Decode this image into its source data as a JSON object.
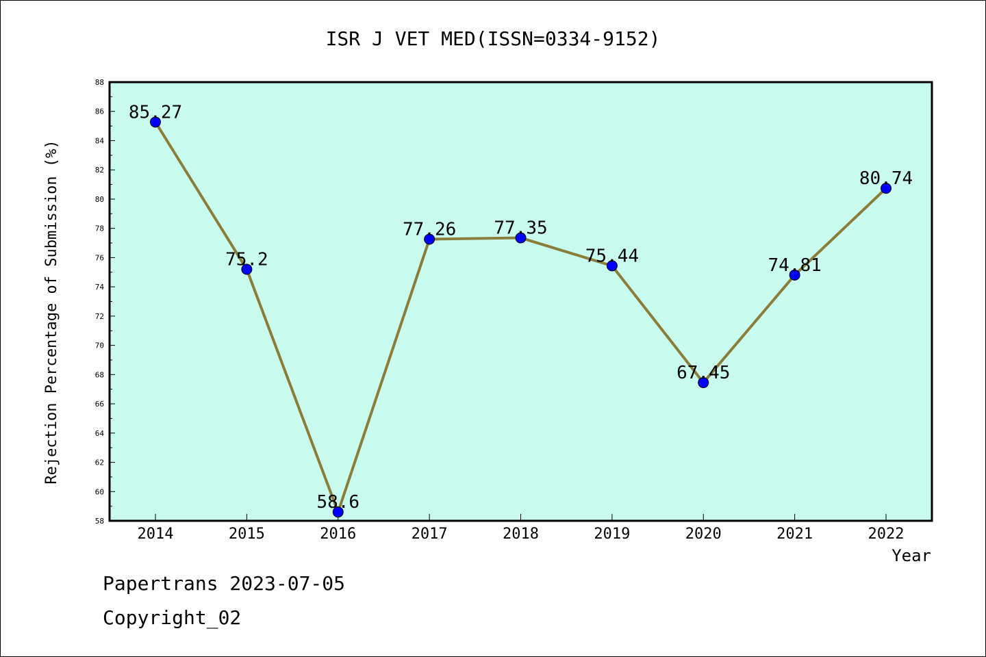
{
  "chart_data": {
    "type": "line",
    "title": "ISR J VET MED(ISSN=0334-9152)",
    "xlabel": "Year",
    "ylabel": "Rejection Percentage of Submission (%)",
    "categories": [
      "2014",
      "2015",
      "2016",
      "2017",
      "2018",
      "2019",
      "2020",
      "2021",
      "2022"
    ],
    "values": [
      85.27,
      75.2,
      58.6,
      77.26,
      77.35,
      75.44,
      67.45,
      74.81,
      80.74
    ],
    "value_labels": [
      "85.27",
      "75.2",
      "58.6",
      "77.26",
      "77.35",
      "75.44",
      "67.45",
      "74.81",
      "80.74"
    ],
    "ylim": [
      58,
      88
    ],
    "yticks": [
      "58",
      "60",
      "62",
      "64",
      "66",
      "68",
      "70",
      "72",
      "74",
      "76",
      "78",
      "80",
      "82",
      "84",
      "86",
      "88"
    ],
    "grid": false,
    "legend": "none",
    "colors": {
      "plot_background": "#c8fcee",
      "line": "#8b7d3a",
      "marker": "#0000ff"
    }
  },
  "footer": {
    "line1": "Papertrans 2023-07-05",
    "line2": "Copyright_02"
  }
}
